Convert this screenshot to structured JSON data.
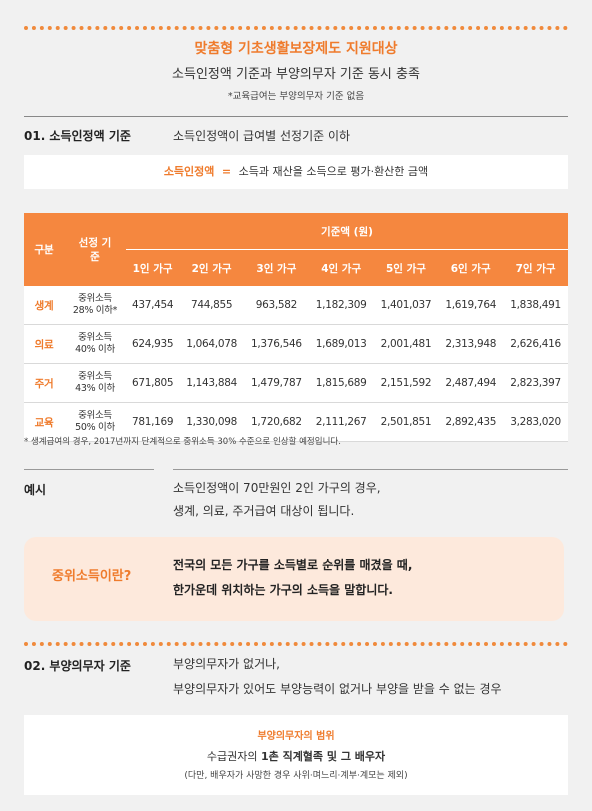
{
  "header": {
    "title": "맞춤형 기초생활보장제도 지원대상",
    "subtitle": "소득인정액 기준과 부양의무자 기준 동시 충족",
    "note": "*교육급여는 부양의무자 기준 없음"
  },
  "section1": {
    "heading": "01. 소득인정액 기준",
    "desc": "소득인정액이 급여별 선정기준 이하",
    "def_term": "소득인정액",
    "def_eq": "=",
    "def_text": "소득과 재산을 소득으로 평가·환산한 금액"
  },
  "table": {
    "h_category": "구분",
    "h_base": "선정 기준",
    "h_amount": "기준액 (원)",
    "household_headers": [
      "1인 가구",
      "2인 가구",
      "3인 가구",
      "4인 가구",
      "5인 가구",
      "6인 가구",
      "7인 가구"
    ],
    "rows": [
      {
        "category": "생계",
        "base": "중위소득 28% 이하*",
        "values": [
          "437,454",
          "744,855",
          "963,582",
          "1,182,309",
          "1,401,037",
          "1,619,764",
          "1,838,491"
        ]
      },
      {
        "category": "의료",
        "base": "중위소득 40% 이하",
        "values": [
          "624,935",
          "1,064,078",
          "1,376,546",
          "1,689,013",
          "2,001,481",
          "2,313,948",
          "2,626,416"
        ]
      },
      {
        "category": "주거",
        "base": "중위소득 43% 이하",
        "values": [
          "671,805",
          "1,143,884",
          "1,479,787",
          "1,815,689",
          "2,151,592",
          "2,487,494",
          "2,823,397"
        ]
      },
      {
        "category": "교육",
        "base": "중위소득 50% 이하",
        "values": [
          "781,169",
          "1,330,098",
          "1,720,682",
          "2,111,267",
          "2,501,851",
          "2,892,435",
          "3,283,020"
        ]
      }
    ],
    "footnote": "* 생계급여의 경우, 2017년까지 단계적으로 중위소득 30% 수준으로 인상할 예정입니다."
  },
  "example": {
    "label": "예시",
    "line1": "소득인정액이 70만원인 2인 가구의 경우,",
    "line2": "생계, 의료, 주거급여 대상이 됩니다."
  },
  "median": {
    "question": "중위소득이란?",
    "line1": "전국의 모든 가구를 소득별로 순위를 매겼을 때,",
    "line2": "한가운데 위치하는 가구의 소득을 말합니다."
  },
  "section2": {
    "heading": "02. 부양의무자 기준",
    "line1": "부양의무자가 없거나,",
    "line2": "부양의무자가 있어도 부양능력이 없거나 부양을 받을 수 없는 경우"
  },
  "scope": {
    "title": "부양의무자의 범위",
    "line_pre": "수급권자의 ",
    "line_bold": "1촌 직계혈족 및 그 배우자",
    "note": "(다만, 배우자가 사망한 경우 사위·며느리·계부·계모는 제외)"
  },
  "colors": {
    "accent": "#f5873f",
    "accent_text": "#ef7b2c",
    "callout_bg": "#fde9dc"
  }
}
